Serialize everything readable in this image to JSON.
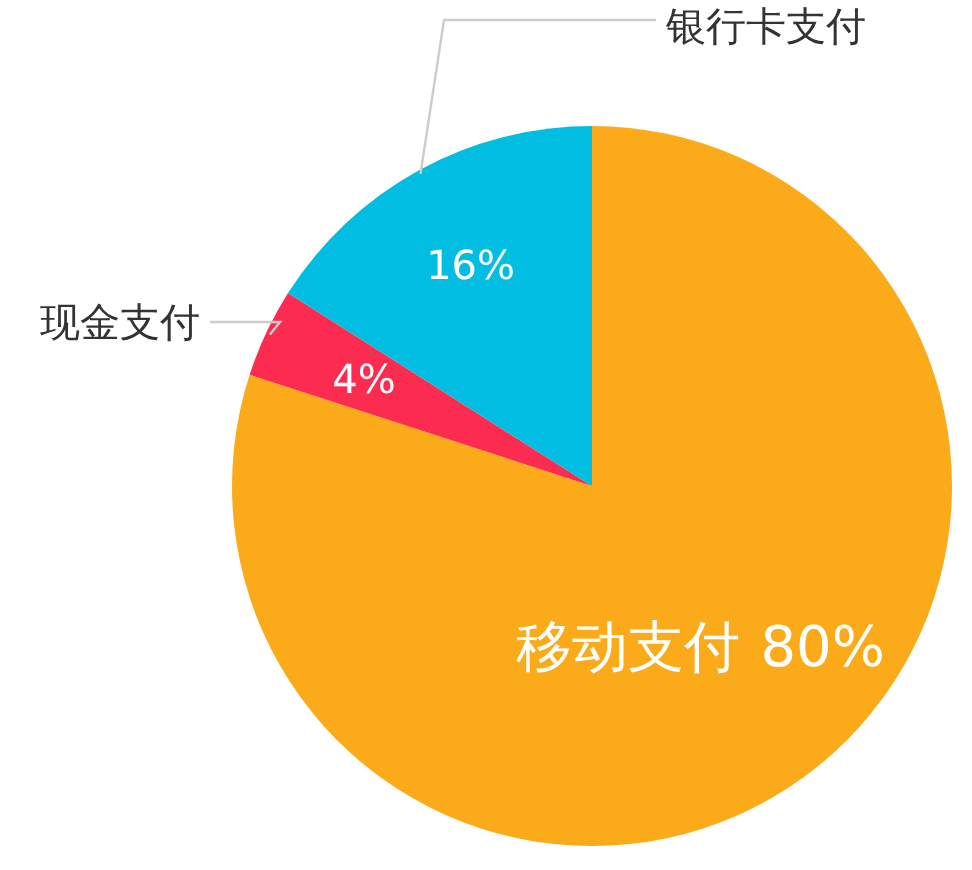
{
  "chart_data": {
    "type": "pie",
    "categories": [
      "移动支付",
      "现金支付",
      "银行卡支付"
    ],
    "values": [
      80,
      4,
      16
    ],
    "value_labels": [
      "80%",
      "4%",
      "16%"
    ],
    "colors": [
      "#fbaa19",
      "#fc2c50",
      "#02bde2"
    ]
  }
}
